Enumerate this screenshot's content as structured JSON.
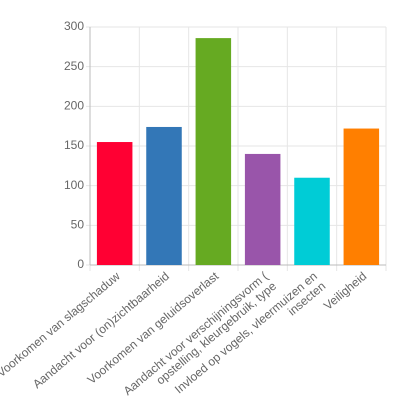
{
  "chart_data": {
    "type": "bar",
    "categories": [
      [
        "Voorkomen van slagschaduw"
      ],
      [
        "Aandacht voor (on)zichtbaarheid"
      ],
      [
        "Voorkomen van geluidsoverlast"
      ],
      [
        "Aandacht voor verschijningsvorm (",
        "opstelling, kleurgebruik, type"
      ],
      [
        "Invloed op vogels, vleermuizen en",
        "insecten"
      ],
      [
        "Veiligheid"
      ]
    ],
    "values": [
      155,
      174,
      286,
      140,
      110,
      172
    ],
    "colors": [
      "#ff0033",
      "#3377b7",
      "#66aa22",
      "#9955aa",
      "#00ccd6",
      "#ff7f00"
    ],
    "ylim": [
      0,
      300
    ],
    "yticks": [
      0,
      50,
      100,
      150,
      200,
      250,
      300
    ],
    "grid": true
  }
}
